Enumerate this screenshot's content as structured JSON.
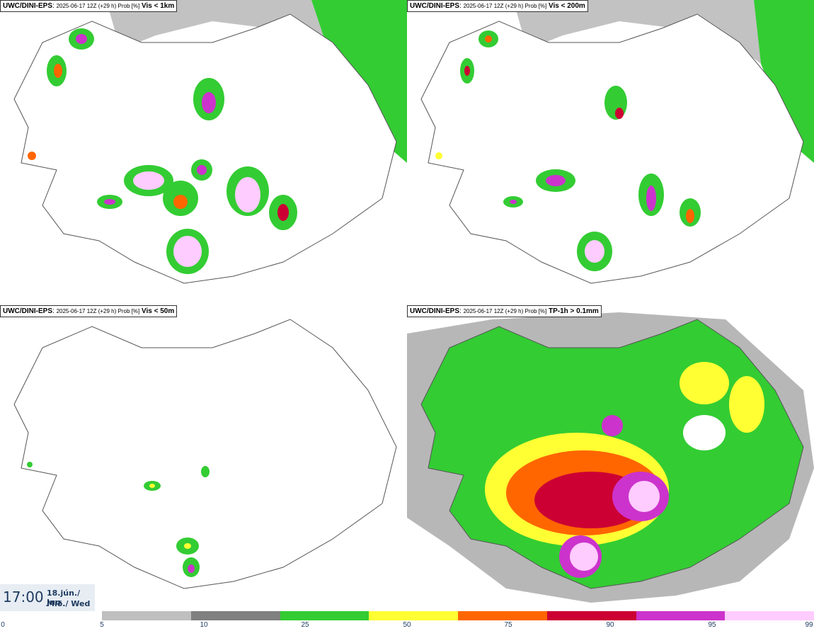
{
  "panels": [
    {
      "id": "p1",
      "model": "UWC/DINI-EPS",
      "meta": "2025-06-17 12Z (+29 h) Prob [%]",
      "variable": "Vis < 1km"
    },
    {
      "id": "p2",
      "model": "UWC/DINI-EPS",
      "meta": "2025-06-17 12Z (+29 h) Prob [%]",
      "variable": "Vis < 200m"
    },
    {
      "id": "p3",
      "model": "UWC/DINI-EPS",
      "meta": "2025-06-17 12Z (+29 h) Prob [%]",
      "variable": "Vis < 50m"
    },
    {
      "id": "p4",
      "model": "UWC/DINI-EPS",
      "meta": "2025-06-17 12Z (+29 h) Prob [%]",
      "variable": "TP-1h > 0.1mm"
    }
  ],
  "valid_time": {
    "time": "17:00",
    "date_line1": "18.jún./ Jun",
    "date_line2": "Mið./ Wed"
  },
  "legend": {
    "ticks": [
      "0",
      "5",
      "10",
      "25",
      "50",
      "75",
      "90",
      "95",
      "99"
    ],
    "colors": [
      "#bfbfbf",
      "#808080",
      "#33cc33",
      "#ffff33",
      "#ff6600",
      "#cc0033",
      "#cc33cc",
      "#ffccff"
    ]
  }
}
